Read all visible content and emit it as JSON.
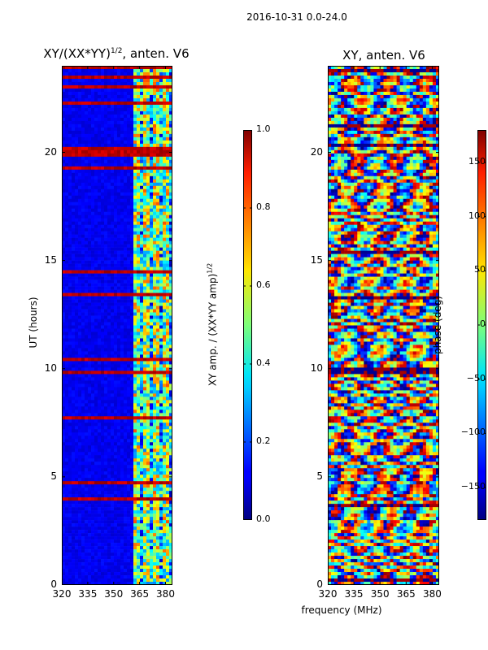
{
  "suptitle": "2016-10-31 0.0-24.0",
  "chart_data": [
    {
      "type": "heatmap",
      "title": "XY/(XX*YY)^1/2, anten. V6",
      "title_main": "XY/(XX*YY)",
      "title_exp": "1/2",
      "title_rest": ", anten. V6",
      "xlabel": "",
      "ylabel": "UT (hours)",
      "xlim": [
        320,
        384
      ],
      "ylim": [
        0,
        24
      ],
      "x_ticks": [
        320,
        335,
        350,
        365,
        380
      ],
      "x_tick_labels": [
        "320",
        "335",
        "350",
        "365",
        "380"
      ],
      "y_ticks": [
        0,
        5,
        10,
        15,
        20
      ],
      "y_tick_labels": [
        "0",
        "5",
        "10",
        "15",
        "20"
      ],
      "colormap": "jet",
      "colorbar": {
        "label": "XY amp. / (XX*YY amp)^1/2",
        "label_main": "XY amp. / (XX*YY amp)",
        "label_exp": "1/2",
        "range": [
          0.0,
          1.0
        ],
        "ticks": [
          0.0,
          0.2,
          0.4,
          0.6,
          0.8,
          1.0
        ],
        "tick_labels": [
          "0.0",
          "0.2",
          "0.4",
          "0.6",
          "0.8",
          "1.0"
        ]
      }
    },
    {
      "type": "heatmap",
      "title": "XY, anten. V6",
      "xlabel": "frequency (MHz)",
      "ylabel": "",
      "xlim": [
        320,
        384
      ],
      "ylim": [
        0,
        24
      ],
      "x_ticks": [
        320,
        335,
        350,
        365,
        380
      ],
      "x_tick_labels": [
        "320",
        "335",
        "350",
        "365",
        "380"
      ],
      "y_ticks": [
        0,
        5,
        10,
        15,
        20
      ],
      "y_tick_labels": [
        "0",
        "5",
        "10",
        "15",
        "20"
      ],
      "colormap": "jet",
      "colorbar": {
        "label": "phase (deg)",
        "range": [
          -180,
          180
        ],
        "ticks": [
          -150,
          -100,
          -50,
          0,
          50,
          100,
          150
        ],
        "tick_labels": [
          "−150",
          "−100",
          "−50",
          "0",
          "50",
          "100",
          "150"
        ]
      }
    }
  ]
}
